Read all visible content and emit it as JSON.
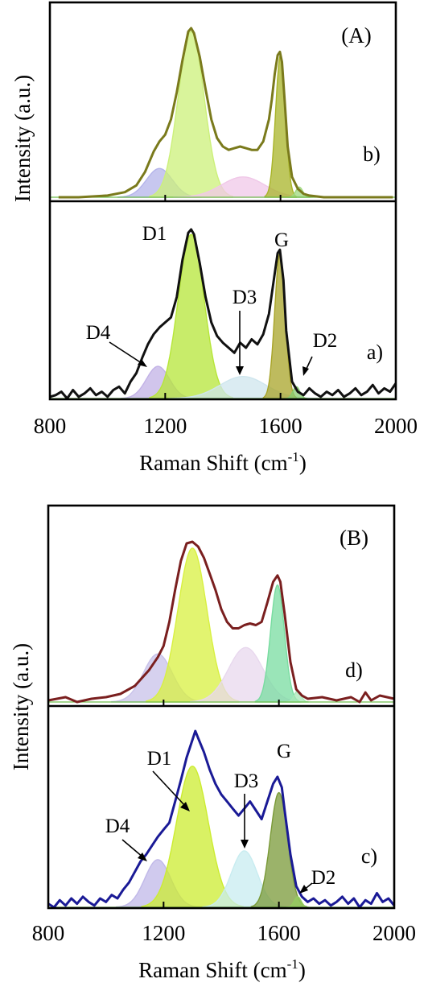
{
  "chart_data": [
    {
      "type": "line",
      "panel_label": "(A)",
      "xlabel": "Raman Shift (cm",
      "xlabel_sup": "-1",
      "xlabel_end": ")",
      "ylabel": "Intensity (a.u.)",
      "xlim": [
        800,
        2000
      ],
      "xticks": [
        "800",
        "1200",
        "1600",
        "2000"
      ],
      "subplots": [
        {
          "trace_label": "b)",
          "colors": {
            "curve": "#7a7a1c",
            "D1": "#ccf07a",
            "G": "#a8b428",
            "D4": "#b4b4ea",
            "D3": "#f0c8e8",
            "D2": "#9ed87c"
          },
          "curve": {
            "x": [
              830,
              900,
              1000,
              1060,
              1100,
              1130,
              1160,
              1180,
              1200,
              1220,
              1240,
              1260,
              1280,
              1290,
              1300,
              1320,
              1340,
              1360,
              1380,
              1400,
              1420,
              1440,
              1460,
              1480,
              1500,
              1520,
              1540,
              1560,
              1570,
              1580,
              1590,
              1598,
              1605,
              1615,
              1625,
              1640,
              1660,
              1680,
              1700,
              1750,
              1800,
              1900,
              1990
            ],
            "y": [
              0,
              0,
              0.01,
              0.03,
              0.07,
              0.15,
              0.27,
              0.33,
              0.37,
              0.46,
              0.62,
              0.81,
              0.98,
              1.0,
              0.97,
              0.83,
              0.64,
              0.46,
              0.35,
              0.3,
              0.28,
              0.29,
              0.3,
              0.29,
              0.28,
              0.28,
              0.33,
              0.46,
              0.58,
              0.73,
              0.84,
              0.86,
              0.8,
              0.56,
              0.3,
              0.12,
              0.05,
              0.02,
              0.01,
              0,
              0,
              0,
              0
            ]
          },
          "bands": [
            {
              "name": "D4",
              "center": 1180,
              "height": 0.17,
              "width": 45
            },
            {
              "name": "D1",
              "center": 1290,
              "height": 0.98,
              "width": 45
            },
            {
              "name": "D3",
              "center": 1470,
              "height": 0.12,
              "width": 75
            },
            {
              "name": "G",
              "center": 1600,
              "height": 0.84,
              "width": 17
            },
            {
              "name": "D2",
              "center": 1665,
              "height": 0.06,
              "width": 12
            }
          ]
        },
        {
          "trace_label": "a)",
          "colors": {
            "curve": "#111111",
            "D1": "#b6e638",
            "G": "#a8a428",
            "D4": "#c2b2e6",
            "D3": "#cfe6ee",
            "D2": "#88cc70"
          },
          "curve": {
            "x": [
              800,
              820,
              840,
              860,
              880,
              900,
              920,
              940,
              960,
              980,
              1000,
              1020,
              1040,
              1060,
              1080,
              1100,
              1120,
              1140,
              1160,
              1180,
              1200,
              1220,
              1240,
              1260,
              1280,
              1290,
              1300,
              1320,
              1340,
              1360,
              1380,
              1400,
              1420,
              1440,
              1460,
              1480,
              1500,
              1520,
              1540,
              1560,
              1580,
              1590,
              1598,
              1610,
              1620,
              1640,
              1660,
              1680,
              1700,
              1720,
              1740,
              1760,
              1780,
              1800,
              1820,
              1840,
              1860,
              1880,
              1900,
              1920,
              1940,
              1960,
              1980,
              2000
            ],
            "y": [
              0.01,
              0.02,
              0.04,
              0.0,
              0.05,
              0.01,
              0.03,
              0.06,
              0.02,
              0.04,
              0.01,
              0.05,
              0.07,
              0.03,
              0.1,
              0.15,
              0.24,
              0.32,
              0.38,
              0.42,
              0.45,
              0.48,
              0.6,
              0.82,
              0.98,
              1.0,
              0.97,
              0.8,
              0.6,
              0.45,
              0.37,
              0.33,
              0.3,
              0.27,
              0.33,
              0.3,
              0.35,
              0.32,
              0.38,
              0.5,
              0.74,
              0.86,
              0.88,
              0.7,
              0.4,
              0.1,
              0.04,
              0.02,
              0.06,
              0.03,
              0.01,
              0.04,
              0.02,
              0.05,
              0.01,
              0.03,
              0.06,
              0.02,
              0.04,
              0.08,
              0.03,
              0.06,
              0.04,
              0.09
            ]
          },
          "bands": [
            {
              "name": "D4",
              "center": 1175,
              "height": 0.19,
              "width": 40
            },
            {
              "name": "D1",
              "center": 1290,
              "height": 0.97,
              "width": 45
            },
            {
              "name": "D3",
              "center": 1470,
              "height": 0.13,
              "width": 80
            },
            {
              "name": "G",
              "center": 1598,
              "height": 0.86,
              "width": 18
            },
            {
              "name": "D2",
              "center": 1655,
              "height": 0.07,
              "width": 12
            }
          ]
        }
      ],
      "annotations": [
        "D1",
        "G",
        "D3",
        "D4",
        "D2"
      ]
    },
    {
      "type": "line",
      "panel_label": "(B)",
      "xlabel": "Raman Shift (cm",
      "xlabel_sup": "-1",
      "xlabel_end": ")",
      "ylabel": "Intensity (a.u.)",
      "xlim": [
        800,
        2000
      ],
      "xticks": [
        "800",
        "1200",
        "1600",
        "2000"
      ],
      "subplots": [
        {
          "trace_label": "d)",
          "colors": {
            "curve": "#7a1f1f",
            "D1": "#d8f040",
            "G": "#78dca0",
            "D4": "#c8c2ea",
            "D3": "#e8d8ee",
            "D2": "#a8e8b8"
          },
          "curve": {
            "x": [
              800,
              860,
              900,
              950,
              1000,
              1050,
              1100,
              1150,
              1180,
              1200,
              1220,
              1240,
              1260,
              1280,
              1300,
              1320,
              1340,
              1360,
              1380,
              1400,
              1420,
              1440,
              1460,
              1480,
              1500,
              1520,
              1540,
              1560,
              1580,
              1595,
              1605,
              1620,
              1640,
              1660,
              1680,
              1700,
              1750,
              1800,
              1850,
              1880,
              1900,
              1920,
              1950,
              2000
            ],
            "y": [
              0.01,
              0.03,
              0.0,
              0.02,
              0.03,
              0.05,
              0.1,
              0.2,
              0.28,
              0.35,
              0.5,
              0.7,
              0.88,
              0.99,
              1.0,
              0.97,
              0.9,
              0.8,
              0.7,
              0.58,
              0.5,
              0.46,
              0.46,
              0.48,
              0.49,
              0.48,
              0.5,
              0.62,
              0.75,
              0.79,
              0.75,
              0.55,
              0.25,
              0.08,
              0.04,
              0.02,
              0.03,
              0.01,
              0.03,
              0.0,
              0.06,
              0.01,
              0.04,
              0.02
            ]
          },
          "bands": [
            {
              "name": "D4",
              "center": 1180,
              "height": 0.3,
              "width": 50
            },
            {
              "name": "D1",
              "center": 1300,
              "height": 0.96,
              "width": 50
            },
            {
              "name": "D3",
              "center": 1485,
              "height": 0.34,
              "width": 60
            },
            {
              "name": "G",
              "center": 1595,
              "height": 0.73,
              "width": 24
            },
            {
              "name": "D2",
              "center": 1665,
              "height": 0.07,
              "width": 12
            }
          ]
        },
        {
          "trace_label": "c)",
          "colors": {
            "curve": "#1a1a96",
            "D1": "#ccec30",
            "G": "#7a9a38",
            "D4": "#c0b8e8",
            "D3": "#c8ecf0",
            "D2": "#94cc60"
          },
          "curve": {
            "x": [
              800,
              820,
              840,
              860,
              880,
              900,
              920,
              940,
              960,
              980,
              1000,
              1020,
              1040,
              1060,
              1080,
              1100,
              1120,
              1140,
              1160,
              1180,
              1200,
              1220,
              1240,
              1260,
              1280,
              1300,
              1310,
              1320,
              1340,
              1360,
              1380,
              1400,
              1420,
              1440,
              1460,
              1480,
              1500,
              1520,
              1540,
              1560,
              1580,
              1595,
              1610,
              1620,
              1640,
              1660,
              1680,
              1700,
              1720,
              1740,
              1760,
              1780,
              1800,
              1820,
              1840,
              1860,
              1880,
              1900,
              1920,
              1940,
              1960,
              1980,
              2000
            ],
            "y": [
              0.02,
              0.0,
              0.04,
              0.01,
              0.05,
              0.02,
              0.06,
              0.03,
              0.01,
              0.05,
              0.03,
              0.07,
              0.05,
              0.1,
              0.14,
              0.2,
              0.26,
              0.3,
              0.35,
              0.4,
              0.44,
              0.48,
              0.6,
              0.72,
              0.85,
              0.95,
              1.0,
              0.96,
              0.88,
              0.78,
              0.7,
              0.64,
              0.6,
              0.56,
              0.52,
              0.56,
              0.6,
              0.55,
              0.5,
              0.6,
              0.7,
              0.74,
              0.68,
              0.55,
              0.3,
              0.12,
              0.06,
              0.03,
              0.05,
              0.02,
              0.04,
              0.01,
              0.03,
              0.06,
              0.02,
              0.05,
              0.0,
              0.04,
              0.02,
              0.08,
              0.03,
              0.05,
              0.01
            ]
          },
          "bands": [
            {
              "name": "D4",
              "center": 1180,
              "height": 0.27,
              "width": 45
            },
            {
              "name": "D1",
              "center": 1300,
              "height": 0.8,
              "width": 55
            },
            {
              "name": "D3",
              "center": 1480,
              "height": 0.32,
              "width": 45
            },
            {
              "name": "G",
              "center": 1600,
              "height": 0.65,
              "width": 30
            },
            {
              "name": "D2",
              "center": 1665,
              "height": 0.06,
              "width": 12
            }
          ]
        }
      ],
      "annotations": [
        "D1",
        "G",
        "D3",
        "D4",
        "D2"
      ]
    }
  ]
}
